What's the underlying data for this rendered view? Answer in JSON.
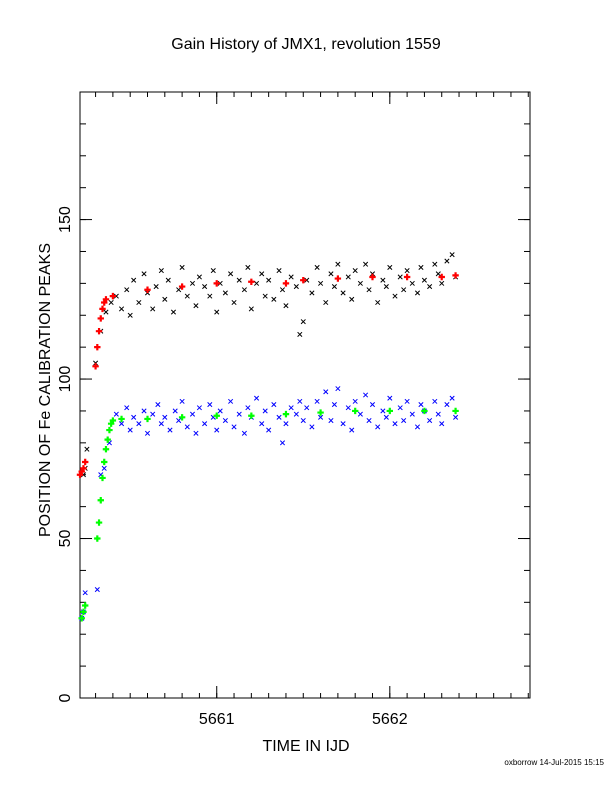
{
  "chart_data": {
    "type": "scatter",
    "title": "Gain History of JMX1, revolution 1559",
    "xlabel": "TIME IN IJD",
    "ylabel": "POSITION OF Fe CALIBRATION PEAKS",
    "xlim": [
      5660.21,
      5662.81
    ],
    "ylim": [
      0,
      190
    ],
    "x_ticks": [
      5661,
      5662
    ],
    "y_ticks": [
      0,
      50,
      100,
      150
    ],
    "grid": false,
    "legend": "none",
    "colors": {
      "upper_raw": "#000000",
      "upper_fit": "#ff0000",
      "lower_raw": "#0000ff",
      "lower_fit": "#00ff00"
    },
    "series": [
      {
        "key": "upper_raw",
        "marker": "x",
        "points": [
          [
            5660.23,
            70
          ],
          [
            5660.24,
            72
          ],
          [
            5660.25,
            78
          ],
          [
            5660.3,
            105
          ],
          [
            5660.33,
            115
          ],
          [
            5660.36,
            121
          ],
          [
            5660.39,
            124
          ],
          [
            5660.42,
            126
          ],
          [
            5660.45,
            122
          ],
          [
            5660.48,
            128
          ],
          [
            5660.5,
            120
          ],
          [
            5660.52,
            131
          ],
          [
            5660.55,
            124
          ],
          [
            5660.58,
            133
          ],
          [
            5660.6,
            127
          ],
          [
            5660.63,
            122
          ],
          [
            5660.65,
            129
          ],
          [
            5660.68,
            134
          ],
          [
            5660.7,
            125
          ],
          [
            5660.72,
            131
          ],
          [
            5660.75,
            121
          ],
          [
            5660.78,
            128
          ],
          [
            5660.8,
            135
          ],
          [
            5660.83,
            126
          ],
          [
            5660.86,
            130
          ],
          [
            5660.88,
            123
          ],
          [
            5660.9,
            132
          ],
          [
            5660.93,
            129
          ],
          [
            5660.96,
            126
          ],
          [
            5660.98,
            134
          ],
          [
            5661.0,
            121
          ],
          [
            5661.02,
            130
          ],
          [
            5661.05,
            127
          ],
          [
            5661.08,
            133
          ],
          [
            5661.1,
            124
          ],
          [
            5661.13,
            131
          ],
          [
            5661.16,
            128
          ],
          [
            5661.18,
            135
          ],
          [
            5661.2,
            122
          ],
          [
            5661.23,
            130
          ],
          [
            5661.26,
            133
          ],
          [
            5661.28,
            126
          ],
          [
            5661.3,
            131
          ],
          [
            5661.33,
            125
          ],
          [
            5661.36,
            134
          ],
          [
            5661.38,
            128
          ],
          [
            5661.4,
            123
          ],
          [
            5661.43,
            132
          ],
          [
            5661.46,
            129
          ],
          [
            5661.48,
            114
          ],
          [
            5661.5,
            118
          ],
          [
            5661.52,
            131
          ],
          [
            5661.55,
            127
          ],
          [
            5661.58,
            135
          ],
          [
            5661.6,
            130
          ],
          [
            5661.63,
            124
          ],
          [
            5661.66,
            133
          ],
          [
            5661.68,
            129
          ],
          [
            5661.7,
            136
          ],
          [
            5661.73,
            127
          ],
          [
            5661.76,
            132
          ],
          [
            5661.78,
            125
          ],
          [
            5661.8,
            134
          ],
          [
            5661.83,
            130
          ],
          [
            5661.86,
            136
          ],
          [
            5661.88,
            128
          ],
          [
            5661.9,
            133
          ],
          [
            5661.93,
            124
          ],
          [
            5661.96,
            131
          ],
          [
            5661.98,
            129
          ],
          [
            5662.0,
            135
          ],
          [
            5662.03,
            126
          ],
          [
            5662.06,
            132
          ],
          [
            5662.08,
            128
          ],
          [
            5662.1,
            134
          ],
          [
            5662.13,
            130
          ],
          [
            5662.16,
            127
          ],
          [
            5662.18,
            135
          ],
          [
            5662.2,
            131
          ],
          [
            5662.23,
            129
          ],
          [
            5662.26,
            136
          ],
          [
            5662.28,
            133
          ],
          [
            5662.3,
            130
          ],
          [
            5662.33,
            137
          ],
          [
            5662.36,
            139
          ],
          [
            5662.38,
            132
          ]
        ]
      },
      {
        "key": "upper_fit",
        "marker": "+",
        "points": [
          [
            5660.21,
            70
          ],
          [
            5660.22,
            71
          ],
          [
            5660.23,
            72
          ],
          [
            5660.24,
            74
          ],
          [
            5660.3,
            104
          ],
          [
            5660.31,
            110
          ],
          [
            5660.32,
            115
          ],
          [
            5660.33,
            119
          ],
          [
            5660.34,
            122
          ],
          [
            5660.35,
            124
          ],
          [
            5660.36,
            125
          ],
          [
            5660.4,
            126
          ],
          [
            5660.6,
            128
          ],
          [
            5660.8,
            129
          ],
          [
            5661.0,
            130
          ],
          [
            5661.2,
            130.5
          ],
          [
            5661.4,
            130
          ],
          [
            5661.5,
            131
          ],
          [
            5661.7,
            131.5
          ],
          [
            5661.9,
            132
          ],
          [
            5662.1,
            132
          ],
          [
            5662.3,
            132
          ],
          [
            5662.38,
            132.5
          ]
        ]
      },
      {
        "key": "lower_raw",
        "marker": "x",
        "points": [
          [
            5660.22,
            25
          ],
          [
            5660.23,
            27
          ],
          [
            5660.24,
            33
          ],
          [
            5660.31,
            34
          ],
          [
            5660.33,
            70
          ],
          [
            5660.35,
            72
          ],
          [
            5660.38,
            80
          ],
          [
            5660.42,
            89
          ],
          [
            5660.45,
            86
          ],
          [
            5660.48,
            91
          ],
          [
            5660.5,
            84
          ],
          [
            5660.52,
            88
          ],
          [
            5660.55,
            86
          ],
          [
            5660.58,
            90
          ],
          [
            5660.6,
            83
          ],
          [
            5660.63,
            89
          ],
          [
            5660.66,
            92
          ],
          [
            5660.68,
            86
          ],
          [
            5660.7,
            88
          ],
          [
            5660.73,
            84
          ],
          [
            5660.76,
            90
          ],
          [
            5660.78,
            87
          ],
          [
            5660.8,
            93
          ],
          [
            5660.83,
            85
          ],
          [
            5660.86,
            89
          ],
          [
            5660.88,
            83
          ],
          [
            5660.9,
            91
          ],
          [
            5660.93,
            86
          ],
          [
            5660.96,
            92
          ],
          [
            5660.98,
            88
          ],
          [
            5661.0,
            84
          ],
          [
            5661.02,
            90
          ],
          [
            5661.05,
            87
          ],
          [
            5661.08,
            93
          ],
          [
            5661.1,
            85
          ],
          [
            5661.13,
            89
          ],
          [
            5661.16,
            83
          ],
          [
            5661.18,
            91
          ],
          [
            5661.2,
            88
          ],
          [
            5661.23,
            94
          ],
          [
            5661.26,
            86
          ],
          [
            5661.28,
            90
          ],
          [
            5661.3,
            84
          ],
          [
            5661.33,
            92
          ],
          [
            5661.36,
            88
          ],
          [
            5661.38,
            80
          ],
          [
            5661.4,
            86
          ],
          [
            5661.43,
            91
          ],
          [
            5661.46,
            89
          ],
          [
            5661.48,
            93
          ],
          [
            5661.5,
            87
          ],
          [
            5661.52,
            91
          ],
          [
            5661.55,
            85
          ],
          [
            5661.58,
            93
          ],
          [
            5661.6,
            88
          ],
          [
            5661.63,
            96
          ],
          [
            5661.66,
            87
          ],
          [
            5661.68,
            92
          ],
          [
            5661.7,
            97
          ],
          [
            5661.73,
            86
          ],
          [
            5661.76,
            91
          ],
          [
            5661.78,
            84
          ],
          [
            5661.8,
            93
          ],
          [
            5661.83,
            89
          ],
          [
            5661.86,
            95
          ],
          [
            5661.88,
            87
          ],
          [
            5661.9,
            92
          ],
          [
            5661.93,
            85
          ],
          [
            5661.96,
            90
          ],
          [
            5661.98,
            88
          ],
          [
            5662.0,
            94
          ],
          [
            5662.03,
            86
          ],
          [
            5662.06,
            91
          ],
          [
            5662.08,
            87
          ],
          [
            5662.1,
            93
          ],
          [
            5662.13,
            89
          ],
          [
            5662.16,
            85
          ],
          [
            5662.18,
            92
          ],
          [
            5662.2,
            90
          ],
          [
            5662.23,
            87
          ],
          [
            5662.26,
            93
          ],
          [
            5662.28,
            89
          ],
          [
            5662.3,
            86
          ],
          [
            5662.33,
            92
          ],
          [
            5662.36,
            94
          ],
          [
            5662.38,
            88
          ]
        ]
      },
      {
        "key": "lower_fit",
        "marker": "+",
        "points": [
          [
            5660.22,
            25
          ],
          [
            5660.23,
            27
          ],
          [
            5660.24,
            29
          ],
          [
            5660.31,
            50
          ],
          [
            5660.32,
            55
          ],
          [
            5660.33,
            62
          ],
          [
            5660.34,
            69
          ],
          [
            5660.35,
            74
          ],
          [
            5660.36,
            78
          ],
          [
            5660.37,
            81
          ],
          [
            5660.38,
            84
          ],
          [
            5660.39,
            86
          ],
          [
            5660.4,
            87
          ],
          [
            5660.45,
            87.5
          ],
          [
            5660.6,
            87.5
          ],
          [
            5660.8,
            88
          ],
          [
            5661.0,
            88.5
          ],
          [
            5661.2,
            88.5
          ],
          [
            5661.4,
            89
          ],
          [
            5661.6,
            89.5
          ],
          [
            5661.8,
            90
          ],
          [
            5662.0,
            90
          ],
          [
            5662.2,
            90
          ],
          [
            5662.38,
            90
          ]
        ]
      }
    ]
  },
  "footer": "oxborrow 14-Jul-2015 15:15"
}
